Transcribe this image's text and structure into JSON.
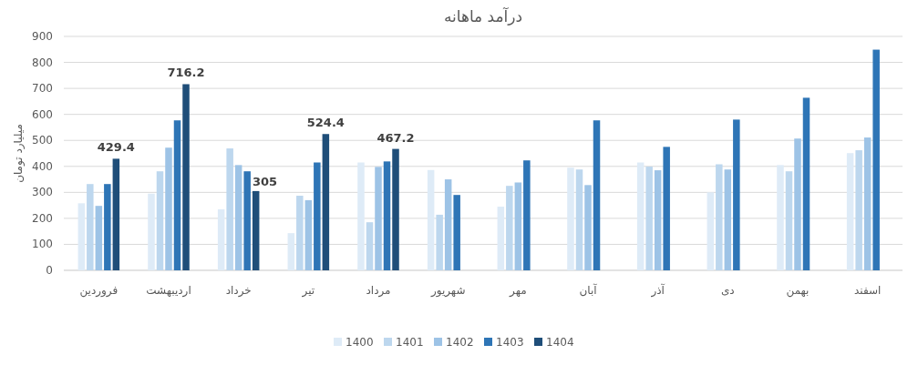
{
  "chart_data": {
    "type": "bar",
    "title": "درآمد ماهانه",
    "ylabel": "میلیارد تومان",
    "categories": [
      "فروردین",
      "اردیبهشت",
      "خرداد",
      "تیر",
      "مرداد",
      "شهریور",
      "مهر",
      "آبان",
      "آذر",
      "دی",
      "بهمن",
      "اسفند"
    ],
    "series": [
      {
        "name": "1400",
        "color": "#deebf7",
        "values": [
          258,
          295,
          235,
          143,
          415,
          386,
          245,
          395,
          415,
          300,
          405,
          451
        ]
      },
      {
        "name": "1401",
        "color": "#bdd7ee",
        "values": [
          332,
          381,
          469,
          287,
          185,
          214,
          325,
          388,
          399,
          408,
          381,
          462
        ]
      },
      {
        "name": "1402",
        "color": "#9dc3e6",
        "values": [
          248,
          472,
          405,
          270,
          398,
          350,
          338,
          328,
          385,
          388,
          507,
          511
        ]
      },
      {
        "name": "1403",
        "color": "#2e75b6",
        "values": [
          332,
          577,
          381,
          415,
          419,
          290,
          423,
          577,
          475,
          580,
          664,
          849
        ]
      },
      {
        "name": "1404",
        "color": "#1f4e79",
        "values": [
          429.4,
          716.2,
          305,
          524.4,
          467.2,
          null,
          null,
          null,
          null,
          null,
          null,
          null
        ],
        "value_labels": [
          "429.4",
          "716.2",
          "305",
          "524.4",
          "467.2",
          null,
          null,
          null,
          null,
          null,
          null,
          null
        ]
      }
    ],
    "ylim": [
      0,
      900
    ],
    "yticks": [
      0,
      100,
      200,
      300,
      400,
      500,
      600,
      700,
      800,
      900
    ],
    "grid": "y",
    "legend": "bottom"
  }
}
